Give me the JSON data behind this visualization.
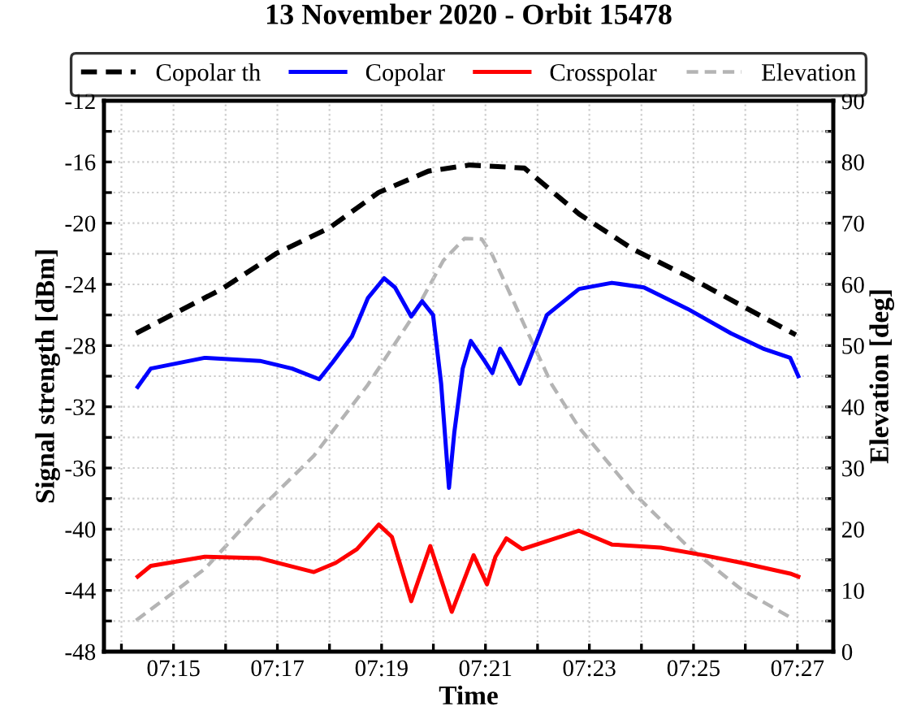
{
  "chart_data": {
    "type": "line",
    "title": "13 November 2020 - Orbit 15478",
    "xlabel": "Time",
    "ylabel": "Signal strength [dBm]",
    "y2label": "Elevation [deg]",
    "xlim": [
      7.2277,
      7.4615
    ],
    "xticks": [
      {
        "value": 7.2333,
        "label": null
      },
      {
        "value": 7.25,
        "label": "07:15"
      },
      {
        "value": 7.2667,
        "label": null
      },
      {
        "value": 7.2833,
        "label": "07:17"
      },
      {
        "value": 7.3,
        "label": null
      },
      {
        "value": 7.3167,
        "label": "07:19"
      },
      {
        "value": 7.3333,
        "label": null
      },
      {
        "value": 7.35,
        "label": "07:21"
      },
      {
        "value": 7.3667,
        "label": null
      },
      {
        "value": 7.3833,
        "label": "07:23"
      },
      {
        "value": 7.4,
        "label": null
      },
      {
        "value": 7.4167,
        "label": "07:25"
      },
      {
        "value": 7.4333,
        "label": null
      },
      {
        "value": 7.45,
        "label": "07:27"
      }
    ],
    "ylim": [
      -48,
      -12
    ],
    "yticks": [
      -48,
      {
        "value": -46,
        "label": null
      },
      -44,
      {
        "value": -42,
        "label": null
      },
      -40,
      {
        "value": -38,
        "label": null
      },
      -36,
      {
        "value": -34,
        "label": null
      },
      -32,
      {
        "value": -30,
        "label": null
      },
      -28,
      {
        "value": -26,
        "label": null
      },
      -24,
      {
        "value": -22,
        "label": null
      },
      -20,
      {
        "value": -18,
        "label": null
      },
      -16,
      {
        "value": -14,
        "label": null
      },
      -12
    ],
    "y2lim": [
      0,
      90
    ],
    "y2ticks": [
      0,
      {
        "value": 5,
        "label": null
      },
      10,
      {
        "value": 15,
        "label": null
      },
      20,
      {
        "value": 25,
        "label": null
      },
      30,
      {
        "value": 35,
        "label": null
      },
      40,
      {
        "value": 45,
        "label": null
      },
      50,
      {
        "value": 55,
        "label": null
      },
      60,
      {
        "value": 65,
        "label": null
      },
      70,
      {
        "value": 75,
        "label": null
      },
      80,
      {
        "value": 85,
        "label": null
      },
      90
    ],
    "grid": true,
    "legend": "top",
    "series": [
      {
        "name": "Copolar th",
        "color": "#000000",
        "line_style": "dashed",
        "x": [
          7.238,
          7.2655,
          7.2828,
          7.3,
          7.3157,
          7.3317,
          7.345,
          7.3625,
          7.38,
          7.3973,
          7.415,
          7.4495
        ],
        "values": [
          -27.2,
          -24.3,
          -22.0,
          -20.3,
          -18.0,
          -16.6,
          -16.2,
          -16.4,
          -19.4,
          -21.7,
          -23.5,
          -27.3
        ]
      },
      {
        "name": "Copolar",
        "color": "#0000ff",
        "line_style": "solid",
        "x": [
          7.2385,
          7.2427,
          7.26,
          7.2777,
          7.288,
          7.2967,
          7.301,
          7.3072,
          7.3123,
          7.3175,
          7.321,
          7.3262,
          7.3297,
          7.3332,
          7.3358,
          7.3383,
          7.34,
          7.3427,
          7.3453,
          7.3497,
          7.3522,
          7.3547,
          7.3573,
          7.361,
          7.3643,
          7.3697,
          7.38,
          7.3905,
          7.4008,
          7.4148,
          7.4287,
          7.439,
          7.4477,
          7.4503
        ],
        "values": [
          -30.7,
          -29.5,
          -28.8,
          -29.0,
          -29.5,
          -30.2,
          -29.1,
          -27.4,
          -24.9,
          -23.6,
          -24.2,
          -26.1,
          -25.1,
          -26.0,
          -30.5,
          -37.3,
          -33.7,
          -29.5,
          -27.7,
          -29.0,
          -29.8,
          -28.2,
          -29.1,
          -30.5,
          -28.8,
          -26.0,
          -24.3,
          -23.9,
          -24.2,
          -25.6,
          -27.2,
          -28.2,
          -28.8,
          -30.0
        ]
      },
      {
        "name": "Crosspolar",
        "color": "#ff0000",
        "line_style": "solid",
        "x": [
          7.2385,
          7.2427,
          7.26,
          7.2777,
          7.295,
          7.302,
          7.3088,
          7.3158,
          7.32,
          7.3262,
          7.3323,
          7.3392,
          7.3462,
          7.3505,
          7.3532,
          7.3567,
          7.3618,
          7.38,
          7.3905,
          7.4062,
          7.42,
          7.4322,
          7.4477,
          7.4503
        ],
        "values": [
          -43.1,
          -42.4,
          -41.8,
          -41.9,
          -42.8,
          -42.2,
          -41.3,
          -39.7,
          -40.5,
          -44.7,
          -41.1,
          -45.4,
          -41.7,
          -43.6,
          -41.8,
          -40.6,
          -41.3,
          -40.1,
          -41.0,
          -41.2,
          -41.7,
          -42.2,
          -42.9,
          -43.1
        ]
      },
      {
        "name": "Elevation",
        "color": "#b4b4b4",
        "line_style": "dashed",
        "axis": "y2",
        "x": [
          7.238,
          7.26,
          7.2777,
          7.295,
          7.3123,
          7.326,
          7.3365,
          7.3433,
          7.3488,
          7.3522,
          7.3625,
          7.3713,
          7.38,
          7.3973,
          7.415,
          7.4322,
          7.4477
        ],
        "values": [
          5.1,
          13.5,
          23.3,
          32.0,
          43.6,
          54.2,
          63.9,
          67.5,
          67.4,
          64.8,
          53.3,
          43.6,
          36.6,
          26.0,
          17.1,
          10.1,
          5.6
        ]
      }
    ]
  }
}
